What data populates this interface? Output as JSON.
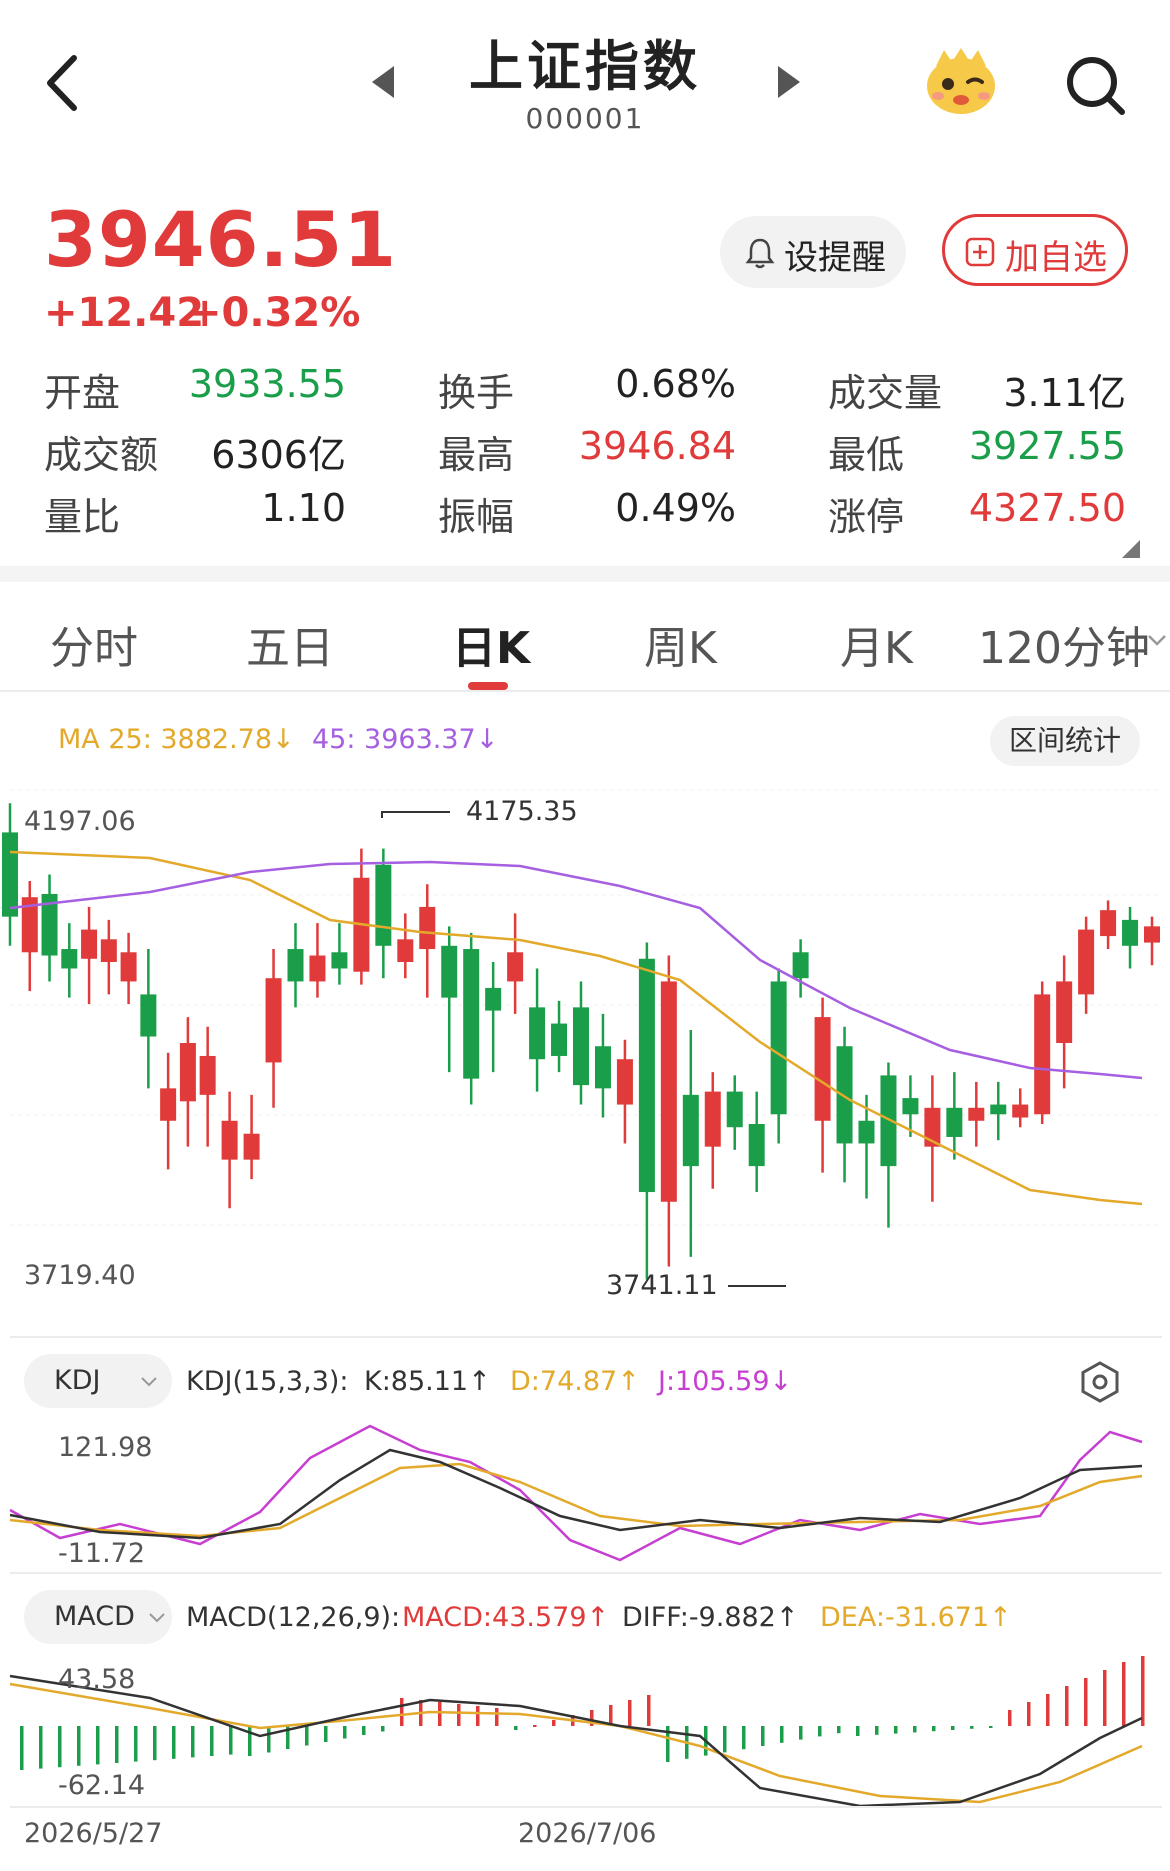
{
  "header": {
    "title": "上证指数",
    "code": "000001"
  },
  "quote": {
    "price": "3946.51",
    "change": "+12.42",
    "change_pct": "+0.32%"
  },
  "actions": {
    "remind_label": "设提醒",
    "add_label": "加自选"
  },
  "stats": [
    [
      {
        "label": "开盘",
        "value": "3933.55",
        "color": "#1a9e4a"
      },
      {
        "label": "换手",
        "value": "0.68%",
        "color": "#222222"
      },
      {
        "label": "成交量",
        "value": "3.11亿",
        "color": "#222222"
      }
    ],
    [
      {
        "label": "成交额",
        "value": "6306亿",
        "color": "#222222"
      },
      {
        "label": "最高",
        "value": "3946.84",
        "color": "#e03a3a"
      },
      {
        "label": "最低",
        "value": "3927.55",
        "color": "#1a9e4a"
      }
    ],
    [
      {
        "label": "量比",
        "value": "1.10",
        "color": "#222222"
      },
      {
        "label": "振幅",
        "value": "0.49%",
        "color": "#222222"
      },
      {
        "label": "涨停",
        "value": "4327.50",
        "color": "#e03a3a"
      }
    ]
  ],
  "tabs": [
    "分时",
    "五日",
    "日K",
    "周K",
    "月K",
    "120分钟"
  ],
  "active_tab": "日K",
  "ma": {
    "ma25": "MA 25: 3882.78",
    "ma45": "45: 3963.37"
  },
  "range_button": "区间统计",
  "candle_chart": {
    "y_max_label": "4197.06",
    "y_min_label": "3719.40",
    "high_annot": "4175.35",
    "low_annot": "3741.11"
  },
  "kdj": {
    "selector": "KDJ",
    "params": "KDJ(15,3,3):",
    "k": "K:85.11",
    "d": "D:74.87",
    "j": "J:105.59",
    "y_max": "121.98",
    "y_min": "-11.72"
  },
  "macd": {
    "selector": "MACD",
    "params": "MACD(12,26,9):",
    "macd": "MACD:43.579",
    "diff": "DIFF:-9.882",
    "dea": "DEA:-31.671",
    "y_max": "43.58",
    "y_min": "-62.14"
  },
  "dates": {
    "start": "2026/5/27",
    "mid": "2026/7/06"
  },
  "colors": {
    "up": "#e03a3a",
    "down": "#1a9e4a",
    "ma25": "#e3a92b",
    "ma45": "#a55fe0",
    "kdj_k": "#333333",
    "kdj_d": "#e3a92b",
    "kdj_j": "#c63fd1"
  }
}
